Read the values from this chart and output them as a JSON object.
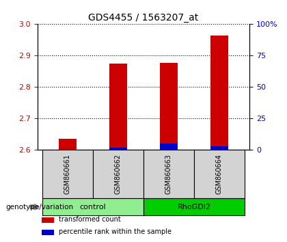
{
  "title": "GDS4455 / 1563207_at",
  "samples": [
    "GSM860661",
    "GSM860662",
    "GSM860663",
    "GSM860664"
  ],
  "red_values": [
    2.635,
    2.875,
    2.878,
    2.965
  ],
  "blue_values": [
    0.5,
    2.0,
    5.0,
    3.0
  ],
  "ylim_left": [
    2.6,
    3.0
  ],
  "ylim_right": [
    0,
    100
  ],
  "yticks_left": [
    2.6,
    2.7,
    2.8,
    2.9,
    3.0
  ],
  "yticks_right": [
    0,
    25,
    50,
    75,
    100
  ],
  "ytick_labels_right": [
    "0",
    "25",
    "50",
    "75",
    "100%"
  ],
  "groups": [
    {
      "label": "control",
      "samples": [
        0,
        1
      ],
      "color": "#90ee90"
    },
    {
      "label": "RhoGDI2",
      "samples": [
        2,
        3
      ],
      "color": "#00cc00"
    }
  ],
  "bar_width": 0.35,
  "red_color": "#cc0000",
  "blue_color": "#0000cc",
  "left_tick_color": "#cc0000",
  "right_tick_color": "#0000cc",
  "grid_color": "#000000",
  "sample_bg_color": "#d3d3d3",
  "group_label_text": "genotype/variation",
  "legend_items": [
    {
      "label": "transformed count",
      "color": "#cc0000"
    },
    {
      "label": "percentile rank within the sample",
      "color": "#0000cc"
    }
  ],
  "baseline": 2.6
}
